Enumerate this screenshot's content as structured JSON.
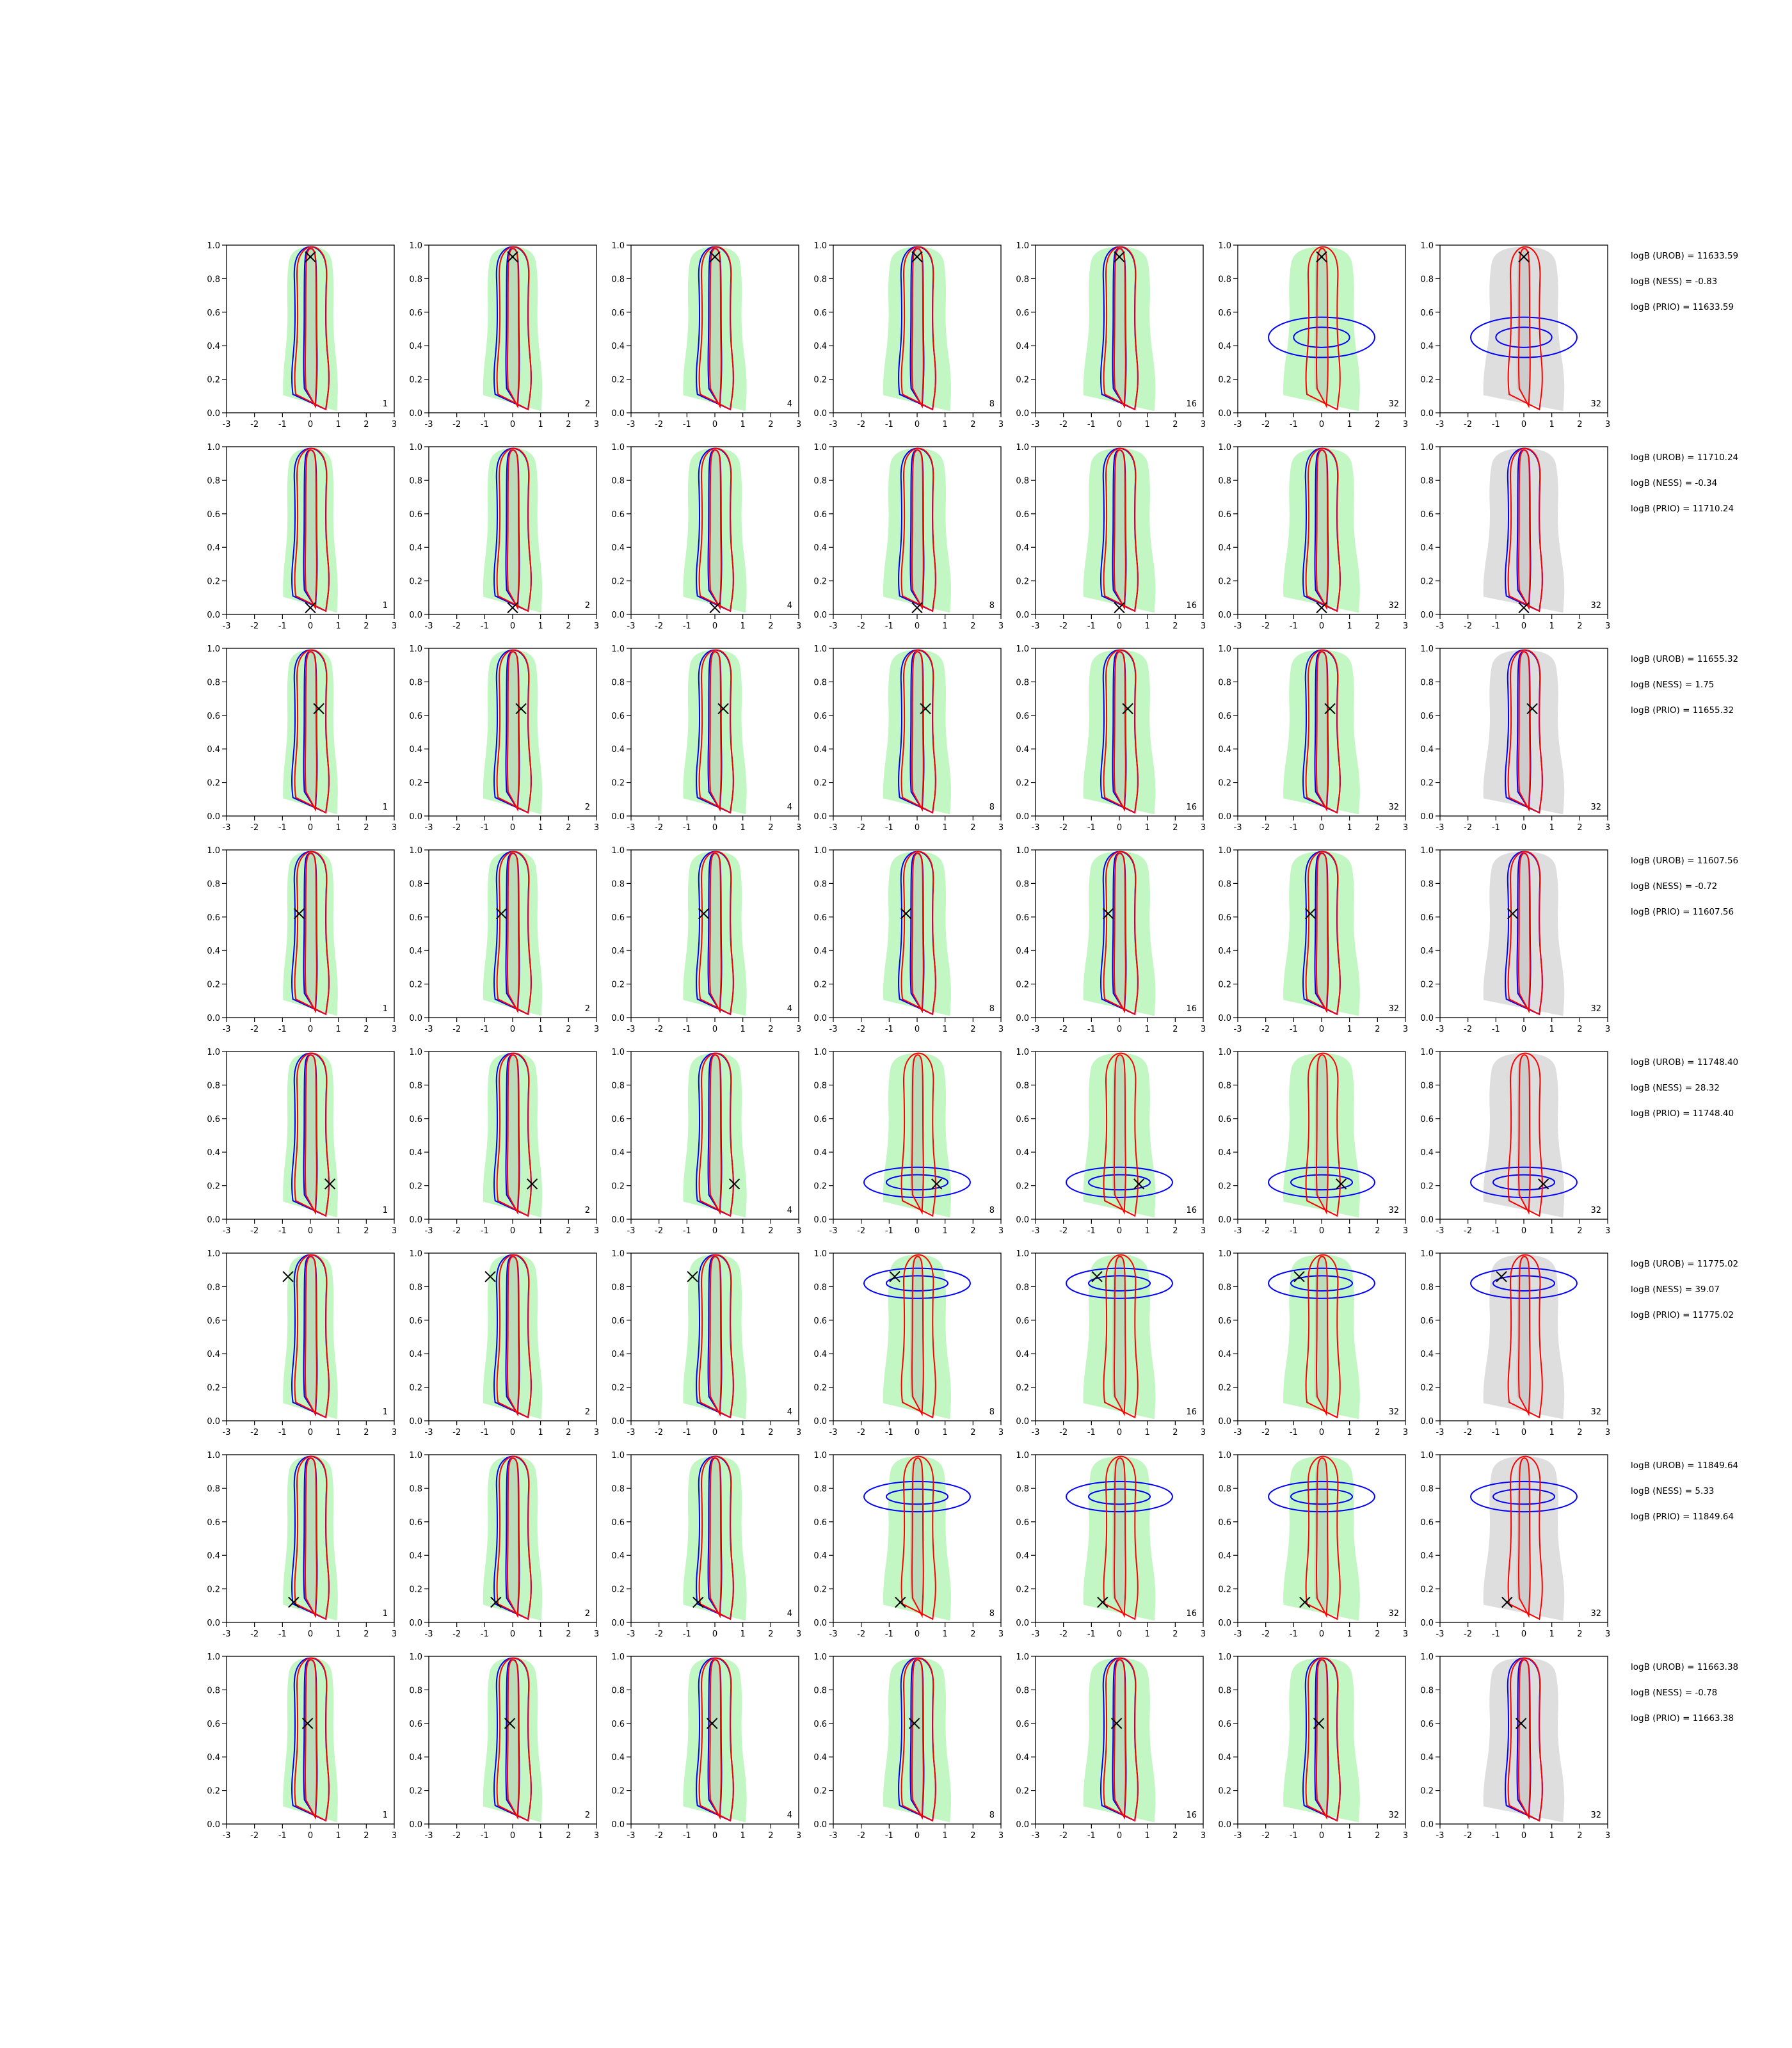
{
  "colors": {
    "uncorrected": "#0000ff",
    "ness": "#ff0000",
    "fill_green": "#90ee90",
    "fill_grey": "#c8c8c8",
    "true_marker": "#000000"
  },
  "chart_data": {
    "type": "contour-grid",
    "rows": 8,
    "cols": 7,
    "xlim": [
      -3,
      3
    ],
    "ylim": [
      0,
      1
    ],
    "xticks": [
      "-3",
      "-2",
      "-1",
      "0",
      "1",
      "2",
      "3"
    ],
    "yticks": [
      "0.0",
      "0.2",
      "0.4",
      "0.6",
      "0.8",
      "1.0"
    ],
    "panel_labels": [
      "1",
      "2",
      "4",
      "8",
      "16",
      "32",
      "32"
    ],
    "last_column_fill": "grey",
    "rows_data": [
      {
        "true_point": [
          0.0,
          0.93
        ],
        "stats": [
          "logB (UROB) = 11633.59",
          "logB (NESS) = -0.83",
          "logB (PRIO) = 11633.59"
        ]
      },
      {
        "true_point": [
          0.0,
          0.04
        ],
        "stats": [
          "logB (UROB) = 11710.24",
          "logB (NESS) = -0.34",
          "logB (PRIO) = 11710.24"
        ]
      },
      {
        "true_point": [
          0.3,
          0.64
        ],
        "stats": [
          "logB (UROB) = 11655.32",
          "logB (NESS) = 1.75",
          "logB (PRIO) = 11655.32"
        ]
      },
      {
        "true_point": [
          -0.4,
          0.62
        ],
        "stats": [
          "logB (UROB) = 11607.56",
          "logB (NESS) = -0.72",
          "logB (PRIO) = 11607.56"
        ]
      },
      {
        "true_point": [
          0.7,
          0.21
        ],
        "stats": [
          "logB (UROB) = 11748.40",
          "logB (NESS) = 28.32",
          "logB (PRIO) = 11748.40"
        ]
      },
      {
        "true_point": [
          -0.8,
          0.86
        ],
        "stats": [
          "logB (UROB) = 11775.02",
          "logB (NESS) = 39.07",
          "logB (PRIO) = 11775.02"
        ]
      },
      {
        "true_point": [
          -0.6,
          0.12
        ],
        "stats": [
          "logB (UROB) = 11849.64",
          "logB (NESS) = 5.33",
          "logB (PRIO) = 11849.64"
        ]
      },
      {
        "true_point": [
          -0.1,
          0.6
        ],
        "stats": [
          "logB (UROB) = 11663.38",
          "logB (NESS) = -0.78",
          "logB (PRIO) = 11663.38"
        ]
      }
    ]
  }
}
